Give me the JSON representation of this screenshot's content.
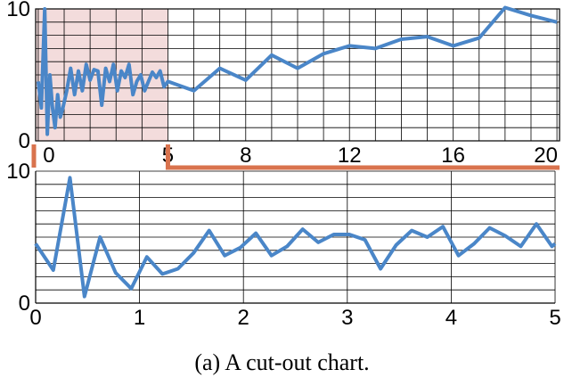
{
  "caption": "(a)  A cut-out chart.",
  "colors": {
    "series": "#4a86c8",
    "highlight_fill": "#f3dcdc",
    "connector": "#d9734e",
    "grid": "#000000"
  },
  "chart_data": [
    {
      "id": "overview",
      "type": "line",
      "title": "",
      "xlabel": "",
      "ylabel": "",
      "xlim": [
        -0.1,
        20.1
      ],
      "ylim": [
        0,
        10
      ],
      "xticks": [
        0,
        5,
        8,
        12,
        16,
        20
      ],
      "yticks": [
        0,
        10
      ],
      "grid": true,
      "highlight_range": [
        -0.1,
        5
      ],
      "series": [
        {
          "x": [
            0,
            0.12,
            0.25,
            0.35,
            0.45,
            0.55,
            0.65,
            0.75,
            0.85,
            0.95,
            1.1,
            1.25,
            1.4,
            1.55,
            1.7,
            1.85,
            2.0,
            2.15,
            2.3,
            2.45,
            2.6,
            2.75,
            2.9,
            3.05,
            3.2,
            3.35,
            3.5,
            3.65,
            3.8,
            3.95,
            4.1,
            4.25,
            4.4,
            4.55,
            4.7,
            4.85,
            5.0,
            6.0,
            7.0,
            8.0,
            9.0,
            10.0,
            11.0,
            12.0,
            13.0,
            14.0,
            15.0,
            16.0,
            17.0,
            18.0,
            19.0,
            20.0
          ],
          "y": [
            4.5,
            2.5,
            10,
            0.5,
            5,
            2.5,
            1,
            3.5,
            1.8,
            2.5,
            3.8,
            5.5,
            3.5,
            5.3,
            3.8,
            5.8,
            4.6,
            5.4,
            5.3,
            2.7,
            5.5,
            4.5,
            5.8,
            3.8,
            5.3,
            4.8,
            5.8,
            3.5,
            4.5,
            5,
            3.8,
            4.5,
            5.2,
            4.8,
            5.3,
            4.1,
            4.5,
            3.8,
            5.5,
            4.6,
            6.5,
            5.5,
            6.6,
            7.2,
            7,
            7.7,
            7.9,
            7.2,
            7.8,
            10.1,
            9.5,
            9
          ]
        }
      ]
    },
    {
      "id": "detail",
      "type": "line",
      "title": "",
      "xlabel": "",
      "ylabel": "",
      "xlim": [
        0,
        5
      ],
      "ylim": [
        0,
        10
      ],
      "xticks": [
        0,
        1,
        2,
        3,
        4,
        5
      ],
      "yticks": [
        0,
        10
      ],
      "grid": true,
      "series": [
        {
          "x": [
            0,
            0.17,
            0.33,
            0.47,
            0.62,
            0.77,
            0.92,
            1.07,
            1.22,
            1.37,
            1.52,
            1.67,
            1.82,
            1.97,
            2.12,
            2.27,
            2.42,
            2.57,
            2.72,
            2.87,
            3.02,
            3.17,
            3.32,
            3.47,
            3.62,
            3.77,
            3.92,
            4.07,
            4.22,
            4.37,
            4.52,
            4.67,
            4.82,
            4.97,
            5.0
          ],
          "y": [
            4.5,
            2.5,
            9.5,
            0.5,
            5,
            2.3,
            1.1,
            3.5,
            2.2,
            2.6,
            3.8,
            5.5,
            3.6,
            4.2,
            5.3,
            3.6,
            4.3,
            5.6,
            4.6,
            5.2,
            5.2,
            4.8,
            2.6,
            4.4,
            5.5,
            5,
            5.8,
            3.6,
            4.5,
            5.7,
            5.1,
            4.3,
            6,
            4.3,
            4.5
          ]
        }
      ]
    }
  ]
}
